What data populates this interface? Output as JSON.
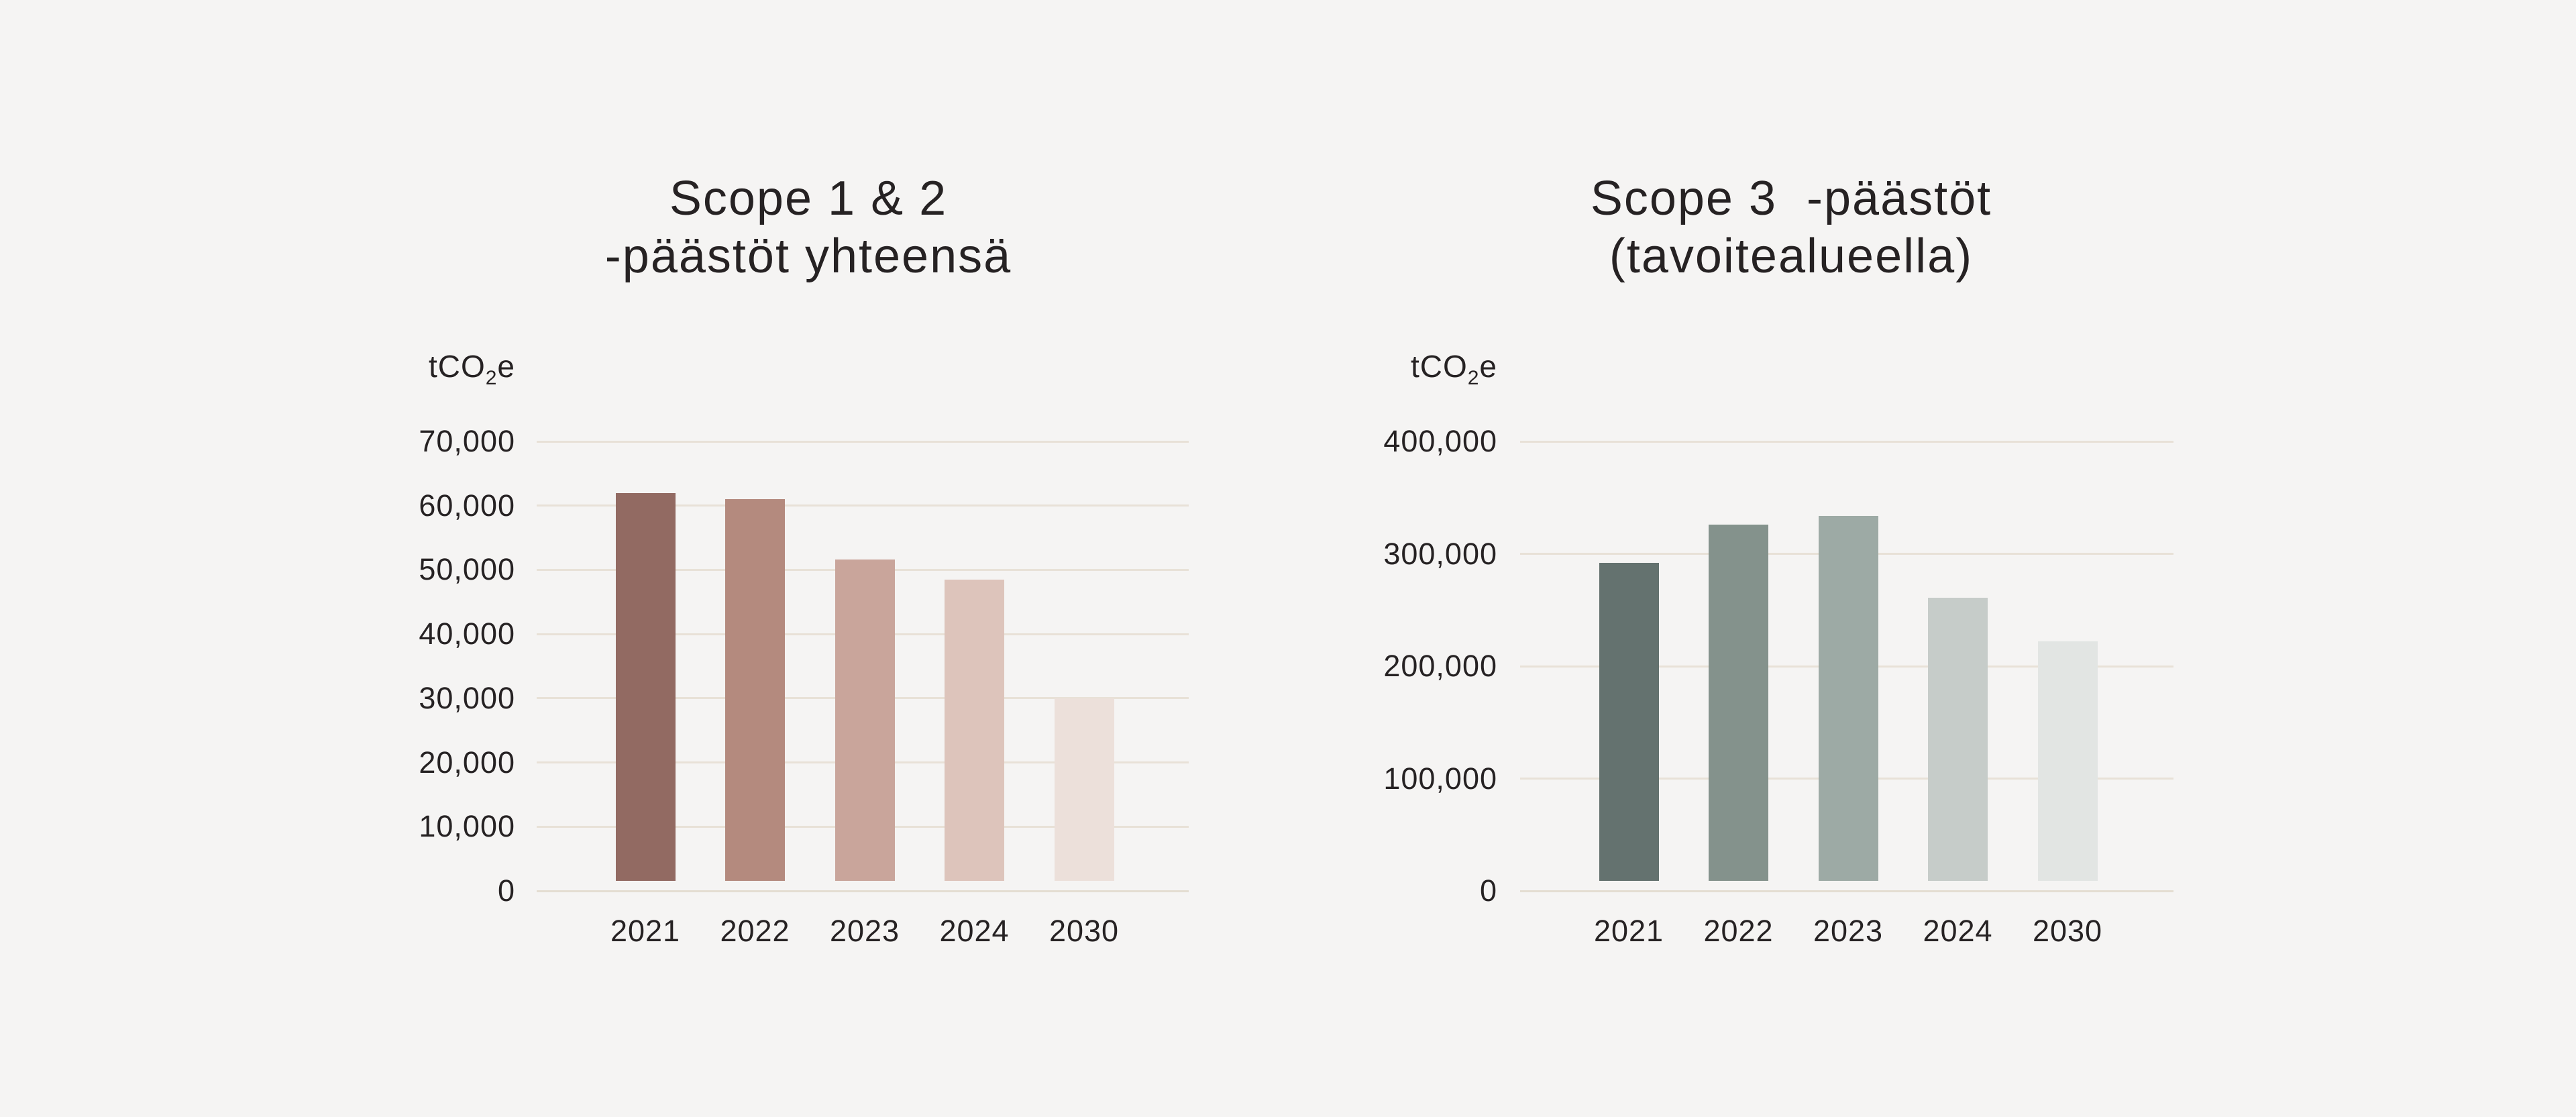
{
  "page": {
    "background": "#f5f4f3",
    "text_color": "#262223",
    "gridline_color": "#e8e1d7",
    "axis_line_color": "#e4ddd1"
  },
  "chart_data": [
    {
      "type": "bar",
      "title": "Scope 1 & 2 -päästöt yhteensä",
      "title_lines": [
        "Scope 1 & 2",
        "-päästöt yhteensä"
      ],
      "unit_label": {
        "prefix": "tCO",
        "sub": "2",
        "suffix": "e"
      },
      "categories": [
        "2021",
        "2022",
        "2023",
        "2024",
        "2030"
      ],
      "values": [
        62000,
        61000,
        51600,
        48500,
        30000
      ],
      "bar_colors": [
        "#926a62",
        "#b48a7e",
        "#c9a59b",
        "#ddc4bb",
        "#ece0da"
      ],
      "ylim": [
        0,
        70000
      ],
      "ytick_step": 10000,
      "ytick_labels": [
        "0",
        "10,000",
        "20,000",
        "30,000",
        "40,000",
        "50,000",
        "60,000",
        "70,000"
      ],
      "grid": true,
      "legend": null
    },
    {
      "type": "bar",
      "title": "Scope 3  -päästöt (tavoitealueella)",
      "title_lines": [
        "Scope 3  -päästöt",
        "(tavoitealueella)"
      ],
      "unit_label": {
        "prefix": "tCO",
        "sub": "2",
        "suffix": "e"
      },
      "categories": [
        "2021",
        "2022",
        "2023",
        "2024",
        "2030"
      ],
      "values": [
        292000,
        326000,
        334000,
        261000,
        222000
      ],
      "bar_colors": [
        "#64726f",
        "#84928c",
        "#9daaa5",
        "#c6ccc9",
        "#e2e5e3"
      ],
      "ylim": [
        0,
        400000
      ],
      "ytick_step": 100000,
      "ytick_labels": [
        "0",
        "100,000",
        "200,000",
        "300,000",
        "400,000"
      ],
      "grid": true,
      "legend": null
    }
  ]
}
